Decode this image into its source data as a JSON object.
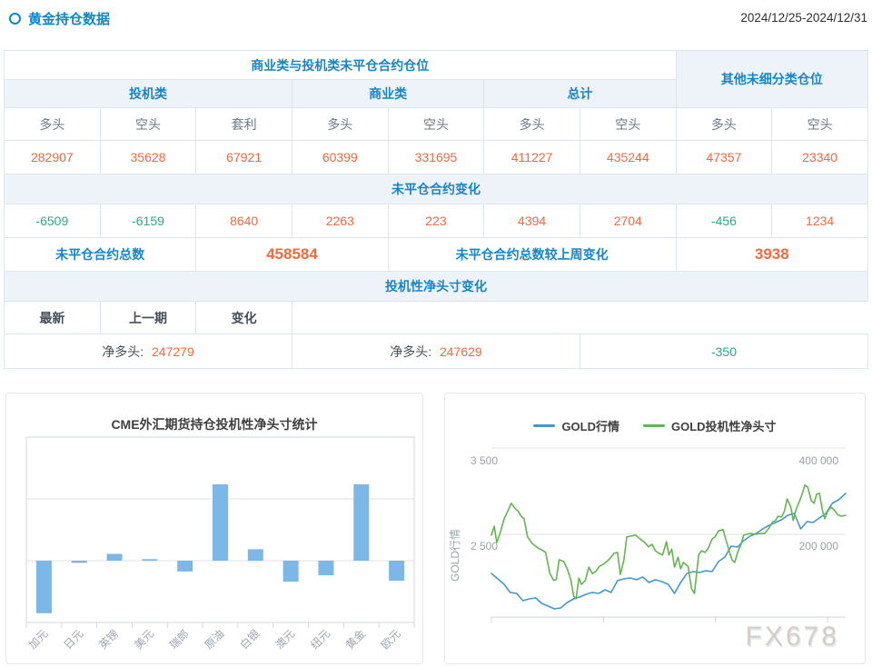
{
  "header": {
    "title": "黄金持仓数据",
    "date_range": "2024/12/25-2024/12/31"
  },
  "table": {
    "group_header_main": "商业类与投机类未平仓合约仓位",
    "group_header_other": "其他未细分类仓位",
    "subgroups": [
      "投机类",
      "商业类",
      "总计"
    ],
    "col_headers": [
      "多头",
      "空头",
      "套利",
      "多头",
      "空头",
      "多头",
      "空头",
      "多头",
      "空头"
    ],
    "positions": [
      "282907",
      "35628",
      "67921",
      "60399",
      "331695",
      "411227",
      "435244",
      "47357",
      "23340"
    ],
    "change_header": "未平仓合约变化",
    "changes": [
      "-6509",
      "-6159",
      "8640",
      "2263",
      "223",
      "4394",
      "2704",
      "-456",
      "1234"
    ],
    "total_label": "未平仓合约总数",
    "total_value": "458584",
    "total_change_label": "未平仓合约总数较上周变化",
    "total_change_value": "3938",
    "net_header": "投机性净头寸变化",
    "net_cols": [
      "最新",
      "上一期",
      "变化"
    ],
    "net_latest": {
      "label": "净多头:",
      "value": "247279"
    },
    "net_prev": {
      "label": "净多头:",
      "value": "247629"
    },
    "net_change": "-350"
  },
  "colors": {
    "accent_blue": "#1686c6",
    "value_orange": "#f5683e",
    "value_green": "#2aa88a",
    "bar_blue": "#7db7e8",
    "line_blue": "#4197d3",
    "line_green": "#62b64e"
  },
  "chart_data": [
    {
      "type": "bar",
      "title": "CME外汇期货持仓投机性净头寸统计",
      "categories": [
        "加元",
        "日元",
        "英镑",
        "美元",
        "瑞郎",
        "原油",
        "白银",
        "澳元",
        "纽元",
        "黄金",
        "欧元"
      ],
      "values": [
        -170000,
        -7000,
        22000,
        5000,
        -35000,
        247000,
        37000,
        -68000,
        -47000,
        247000,
        -65000
      ],
      "xlabel": "",
      "ylabel": "",
      "ylim": [
        -200000,
        400000
      ],
      "grid_step": 200000,
      "grid": true,
      "y_tick_labels_shown": false,
      "bar_color": "#7db7e8"
    },
    {
      "type": "line",
      "title": "",
      "legend_position": "top",
      "left_axis": {
        "name": "GOLD行情",
        "ticks": [
          "3 500",
          "2 500"
        ],
        "tick_values": [
          3500,
          2500
        ]
      },
      "right_axis": {
        "name": "",
        "ticks": [
          "400 000",
          "200 000"
        ],
        "tick_values": [
          400000,
          200000
        ]
      },
      "watermark": "FX678",
      "series": [
        {
          "name": "GOLD行情",
          "color": "#4197d3",
          "axis": "left",
          "points": [
            [
              0,
              2047
            ],
            [
              0.018,
              1984
            ],
            [
              0.036,
              1921
            ],
            [
              0.053,
              1826
            ],
            [
              0.071,
              1816
            ],
            [
              0.089,
              1732
            ],
            [
              0.107,
              1753
            ],
            [
              0.125,
              1763
            ],
            [
              0.142,
              1700
            ],
            [
              0.16,
              1668
            ],
            [
              0.178,
              1637
            ],
            [
              0.196,
              1647
            ],
            [
              0.214,
              1711
            ],
            [
              0.232,
              1753
            ],
            [
              0.249,
              1774
            ],
            [
              0.267,
              1805
            ],
            [
              0.285,
              1826
            ],
            [
              0.303,
              1816
            ],
            [
              0.321,
              1858
            ],
            [
              0.338,
              1826
            ],
            [
              0.356,
              1963
            ],
            [
              0.374,
              1984
            ],
            [
              0.392,
              1995
            ],
            [
              0.41,
              1974
            ],
            [
              0.427,
              2005
            ],
            [
              0.445,
              1942
            ],
            [
              0.463,
              1974
            ],
            [
              0.481,
              1953
            ],
            [
              0.499,
              1921
            ],
            [
              0.517,
              1816
            ],
            [
              0.534,
              1942
            ],
            [
              0.552,
              2047
            ],
            [
              0.57,
              2068
            ],
            [
              0.588,
              2058
            ],
            [
              0.606,
              2079
            ],
            [
              0.623,
              2068
            ],
            [
              0.641,
              2184
            ],
            [
              0.659,
              2237
            ],
            [
              0.677,
              2363
            ],
            [
              0.695,
              2353
            ],
            [
              0.712,
              2426
            ],
            [
              0.73,
              2479
            ],
            [
              0.748,
              2511
            ],
            [
              0.766,
              2563
            ],
            [
              0.784,
              2605
            ],
            [
              0.802,
              2637
            ],
            [
              0.819,
              2668
            ],
            [
              0.837,
              2721
            ],
            [
              0.855,
              2742
            ],
            [
              0.873,
              2563
            ],
            [
              0.891,
              2647
            ],
            [
              0.908,
              2637
            ],
            [
              0.926,
              2689
            ],
            [
              0.944,
              2742
            ],
            [
              0.962,
              2858
            ],
            [
              0.98,
              2900
            ],
            [
              1,
              2974
            ]
          ]
        },
        {
          "name": "GOLD投机性净头寸",
          "color": "#62b64e",
          "axis": "right",
          "points": [
            [
              0,
              198000
            ],
            [
              0.008,
              219000
            ],
            [
              0.015,
              181000
            ],
            [
              0.025,
              204000
            ],
            [
              0.036,
              236000
            ],
            [
              0.046,
              253000
            ],
            [
              0.056,
              272000
            ],
            [
              0.066,
              261000
            ],
            [
              0.076,
              253000
            ],
            [
              0.084,
              242000
            ],
            [
              0.092,
              236000
            ],
            [
              0.102,
              194000
            ],
            [
              0.115,
              179000
            ],
            [
              0.132,
              168000
            ],
            [
              0.142,
              164000
            ],
            [
              0.153,
              158000
            ],
            [
              0.165,
              109000
            ],
            [
              0.176,
              93000
            ],
            [
              0.183,
              95000
            ],
            [
              0.191,
              141000
            ],
            [
              0.204,
              137000
            ],
            [
              0.214,
              120000
            ],
            [
              0.224,
              95000
            ],
            [
              0.232,
              57000
            ],
            [
              0.239,
              51000
            ],
            [
              0.247,
              99000
            ],
            [
              0.254,
              84000
            ],
            [
              0.265,
              93000
            ],
            [
              0.275,
              124000
            ],
            [
              0.285,
              109000
            ],
            [
              0.295,
              114000
            ],
            [
              0.305,
              126000
            ],
            [
              0.316,
              131000
            ],
            [
              0.326,
              137000
            ],
            [
              0.336,
              145000
            ],
            [
              0.346,
              156000
            ],
            [
              0.356,
              158000
            ],
            [
              0.364,
              107000
            ],
            [
              0.374,
              141000
            ],
            [
              0.382,
              194000
            ],
            [
              0.394,
              196000
            ],
            [
              0.407,
              198000
            ],
            [
              0.42,
              189000
            ],
            [
              0.433,
              181000
            ],
            [
              0.443,
              171000
            ],
            [
              0.453,
              177000
            ],
            [
              0.463,
              162000
            ],
            [
              0.473,
              156000
            ],
            [
              0.483,
              152000
            ],
            [
              0.494,
              183000
            ],
            [
              0.501,
              152000
            ],
            [
              0.509,
              166000
            ],
            [
              0.517,
              124000
            ],
            [
              0.527,
              147000
            ],
            [
              0.534,
              120000
            ],
            [
              0.542,
              135000
            ],
            [
              0.555,
              126000
            ],
            [
              0.565,
              74000
            ],
            [
              0.573,
              63000
            ],
            [
              0.585,
              152000
            ],
            [
              0.593,
              162000
            ],
            [
              0.603,
              158000
            ],
            [
              0.611,
              166000
            ],
            [
              0.623,
              189000
            ],
            [
              0.631,
              194000
            ],
            [
              0.641,
              208000
            ],
            [
              0.654,
              211000
            ],
            [
              0.662,
              187000
            ],
            [
              0.669,
              168000
            ],
            [
              0.679,
              141000
            ],
            [
              0.687,
              135000
            ],
            [
              0.695,
              158000
            ],
            [
              0.705,
              177000
            ],
            [
              0.712,
              198000
            ],
            [
              0.72,
              200000
            ],
            [
              0.733,
              202000
            ],
            [
              0.746,
              200000
            ],
            [
              0.758,
              202000
            ],
            [
              0.771,
              202000
            ],
            [
              0.784,
              215000
            ],
            [
              0.794,
              229000
            ],
            [
              0.802,
              232000
            ],
            [
              0.809,
              242000
            ],
            [
              0.819,
              240000
            ],
            [
              0.827,
              253000
            ],
            [
              0.835,
              282000
            ],
            [
              0.845,
              263000
            ],
            [
              0.852,
              232000
            ],
            [
              0.86,
              257000
            ],
            [
              0.87,
              278000
            ],
            [
              0.878,
              295000
            ],
            [
              0.885,
              314000
            ],
            [
              0.893,
              309000
            ],
            [
              0.903,
              278000
            ],
            [
              0.911,
              272000
            ],
            [
              0.918,
              293000
            ],
            [
              0.926,
              295000
            ],
            [
              0.934,
              257000
            ],
            [
              0.941,
              236000
            ],
            [
              0.949,
              253000
            ],
            [
              0.959,
              263000
            ],
            [
              0.967,
              257000
            ],
            [
              0.977,
              246000
            ],
            [
              0.987,
              242000
            ],
            [
              1,
              244000
            ]
          ]
        }
      ]
    }
  ]
}
